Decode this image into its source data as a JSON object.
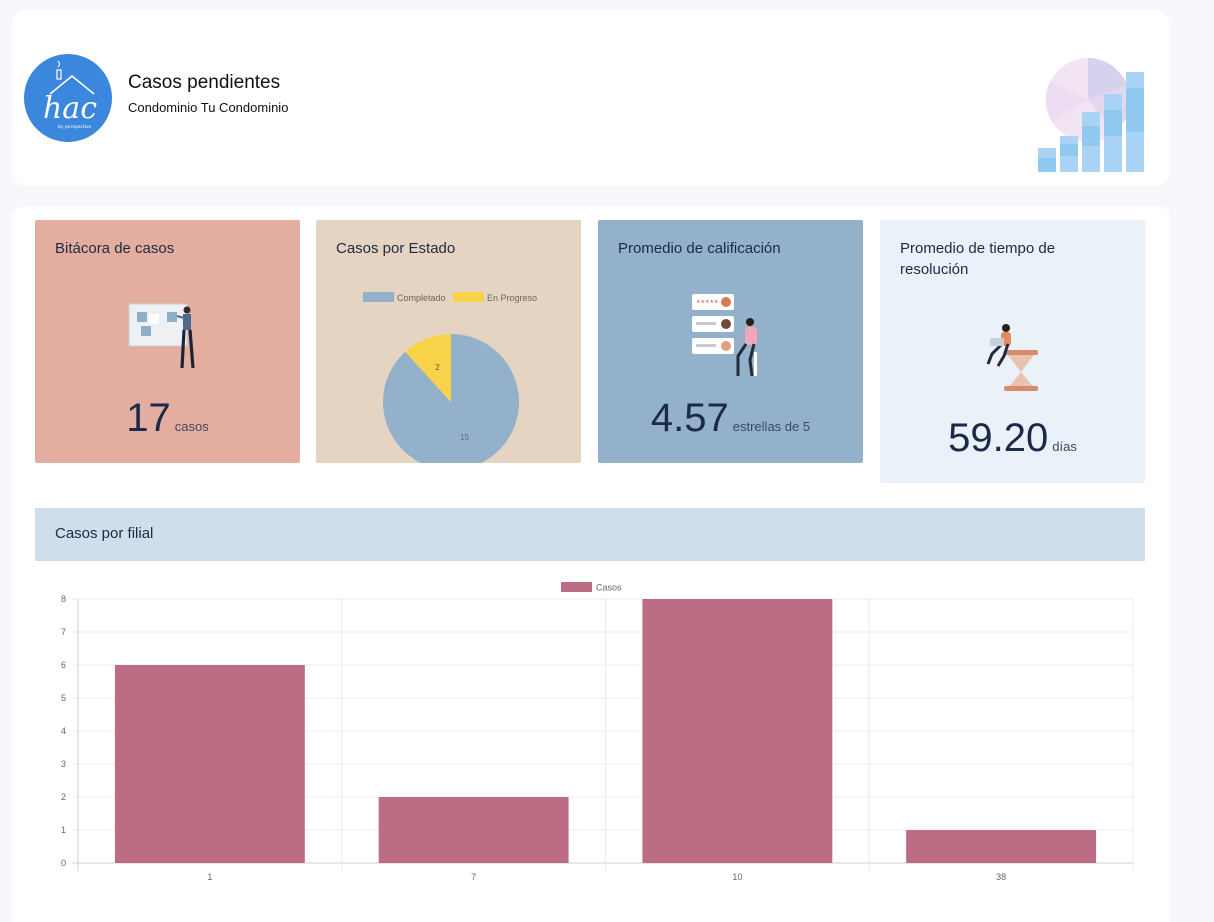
{
  "header": {
    "title": "Casos pendientes",
    "subtitle": "Condominio Tu Condominio",
    "logo_text": "hac",
    "logo_tagline": "by perspective"
  },
  "kpis": {
    "bitacora": {
      "title": "Bitácora de casos",
      "value": "17",
      "unit": "casos"
    },
    "estado": {
      "title": "Casos por Estado"
    },
    "calificacion": {
      "title": "Promedio de calificación",
      "value": "4.57",
      "unit": "estrellas de 5"
    },
    "tiempo": {
      "title": "Promedio de tiempo de resolución",
      "value": "59.20",
      "unit": "días"
    }
  },
  "filial": {
    "title": "Casos por filial"
  },
  "colors": {
    "bitacora_bg": "#e3ae9f",
    "estado_bg": "#e4d4c1",
    "calificacion_bg": "#93b1cb",
    "tiempo_bg": "#eaf1f8",
    "completado": "#93b1cb",
    "en_progreso": "#f8d34a",
    "bar": "#bc6c83"
  },
  "chart_data": [
    {
      "type": "pie",
      "title": "Casos por Estado",
      "legend": [
        "Completado",
        "En Progreso"
      ],
      "categories": [
        "Completado",
        "En Progreso"
      ],
      "values": [
        15,
        2
      ],
      "labels": [
        "15",
        "2"
      ]
    },
    {
      "type": "bar",
      "title": "Casos por filial",
      "legend": [
        "Casos"
      ],
      "categories": [
        "1",
        "7",
        "10",
        "38"
      ],
      "series": [
        {
          "name": "Casos",
          "values": [
            6,
            2,
            8,
            1
          ]
        }
      ],
      "yticks": [
        "0",
        "1",
        "2",
        "3",
        "4",
        "5",
        "6",
        "7",
        "8"
      ],
      "ylim": [
        0,
        8
      ],
      "xlabel": "",
      "ylabel": ""
    }
  ]
}
